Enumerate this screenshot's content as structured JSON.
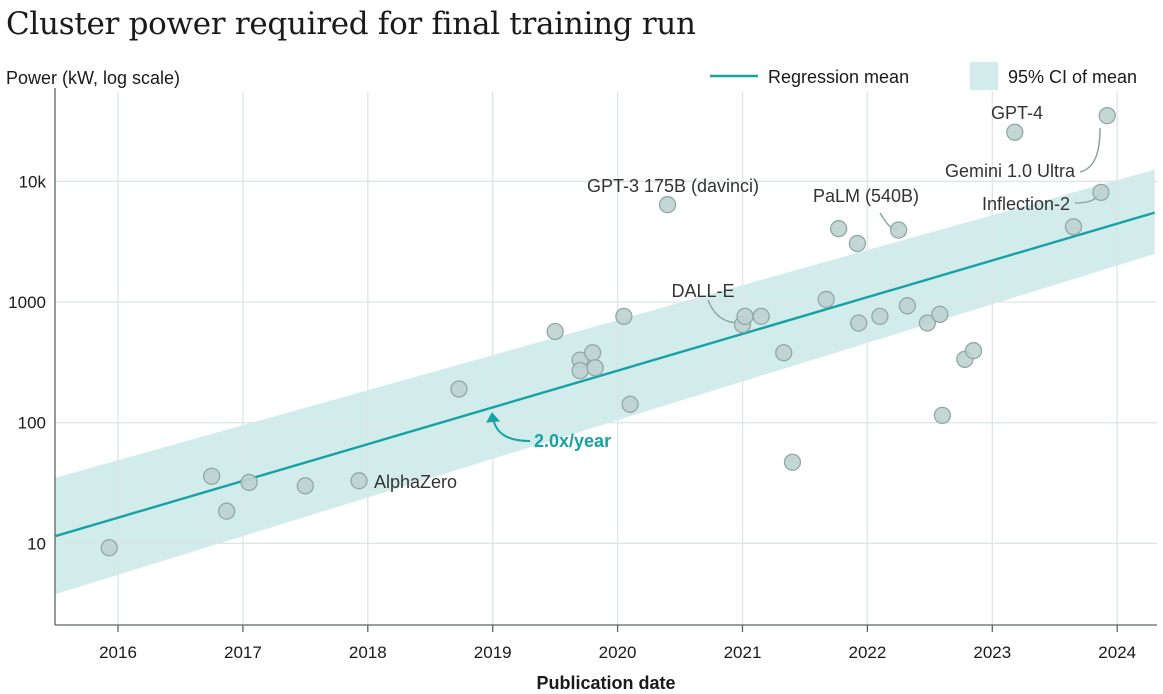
{
  "chart_data": {
    "type": "scatter",
    "title": "Cluster power required for final training run",
    "ylabel": "Power (kW, log scale)",
    "xlabel": "Publication date",
    "y_scale": "log",
    "xlim": [
      2015.5,
      2024.3
    ],
    "ylim": [
      3,
      50000
    ],
    "x_ticks": [
      2016,
      2017,
      2018,
      2019,
      2020,
      2021,
      2022,
      2023,
      2024
    ],
    "x_tick_labels": [
      "2016",
      "2017",
      "2018",
      "2019",
      "2020",
      "2021",
      "2022",
      "2023",
      "2024"
    ],
    "y_ticks": [
      10,
      100,
      1000,
      10000
    ],
    "y_tick_labels": [
      "10",
      "100",
      "1000",
      "10k"
    ],
    "legend": [
      {
        "label": "Regression mean",
        "kind": "line"
      },
      {
        "label": "95% CI of mean",
        "kind": "band"
      }
    ],
    "regression": {
      "x": [
        2015.5,
        2024.3
      ],
      "mean": [
        11.5,
        5500
      ],
      "ci_low": [
        3.8,
        2500
      ],
      "ci_high": [
        35,
        12500
      ]
    },
    "rate_label": "2.0x/year",
    "points": [
      {
        "x": 2015.93,
        "y": 9.2
      },
      {
        "x": 2016.75,
        "y": 36
      },
      {
        "x": 2016.87,
        "y": 18.5
      },
      {
        "x": 2017.05,
        "y": 32
      },
      {
        "x": 2017.5,
        "y": 30
      },
      {
        "x": 2017.93,
        "y": 33
      },
      {
        "x": 2018.73,
        "y": 190
      },
      {
        "x": 2019.5,
        "y": 570
      },
      {
        "x": 2019.7,
        "y": 330
      },
      {
        "x": 2019.7,
        "y": 270
      },
      {
        "x": 2019.8,
        "y": 380
      },
      {
        "x": 2019.82,
        "y": 285
      },
      {
        "x": 2020.05,
        "y": 760
      },
      {
        "x": 2020.1,
        "y": 142
      },
      {
        "x": 2020.4,
        "y": 6400
      },
      {
        "x": 2021.0,
        "y": 650
      },
      {
        "x": 2021.02,
        "y": 760
      },
      {
        "x": 2021.15,
        "y": 760
      },
      {
        "x": 2021.33,
        "y": 380
      },
      {
        "x": 2021.4,
        "y": 47
      },
      {
        "x": 2021.67,
        "y": 1050
      },
      {
        "x": 2021.77,
        "y": 4050
      },
      {
        "x": 2021.92,
        "y": 3050
      },
      {
        "x": 2021.93,
        "y": 670
      },
      {
        "x": 2022.1,
        "y": 760
      },
      {
        "x": 2022.25,
        "y": 3950
      },
      {
        "x": 2022.32,
        "y": 930
      },
      {
        "x": 2022.48,
        "y": 670
      },
      {
        "x": 2022.58,
        "y": 790
      },
      {
        "x": 2022.6,
        "y": 115
      },
      {
        "x": 2022.78,
        "y": 335
      },
      {
        "x": 2022.85,
        "y": 395
      },
      {
        "x": 2023.18,
        "y": 25500
      },
      {
        "x": 2023.65,
        "y": 4200
      },
      {
        "x": 2023.87,
        "y": 8100
      },
      {
        "x": 2023.92,
        "y": 35000
      }
    ],
    "annotations": [
      {
        "label": "GPT-4"
      },
      {
        "label": "Gemini 1.0 Ultra"
      },
      {
        "label": "Inflection-2"
      },
      {
        "label": "GPT-3 175B (davinci)"
      },
      {
        "label": "PaLM (540B)"
      },
      {
        "label": "DALL-E"
      },
      {
        "label": "AlphaZero"
      }
    ]
  },
  "colors": {
    "line": "#17a2a4",
    "band": "#d2ecec",
    "point_fill": "#bed3d0",
    "point_stroke": "#8ea9a5",
    "grid": "#dce6e5",
    "axis": "#5a6665",
    "text": "#1a1a1a",
    "annotation": "#333333",
    "leader": "#8aa6a3",
    "rate": "#17a2a4"
  }
}
